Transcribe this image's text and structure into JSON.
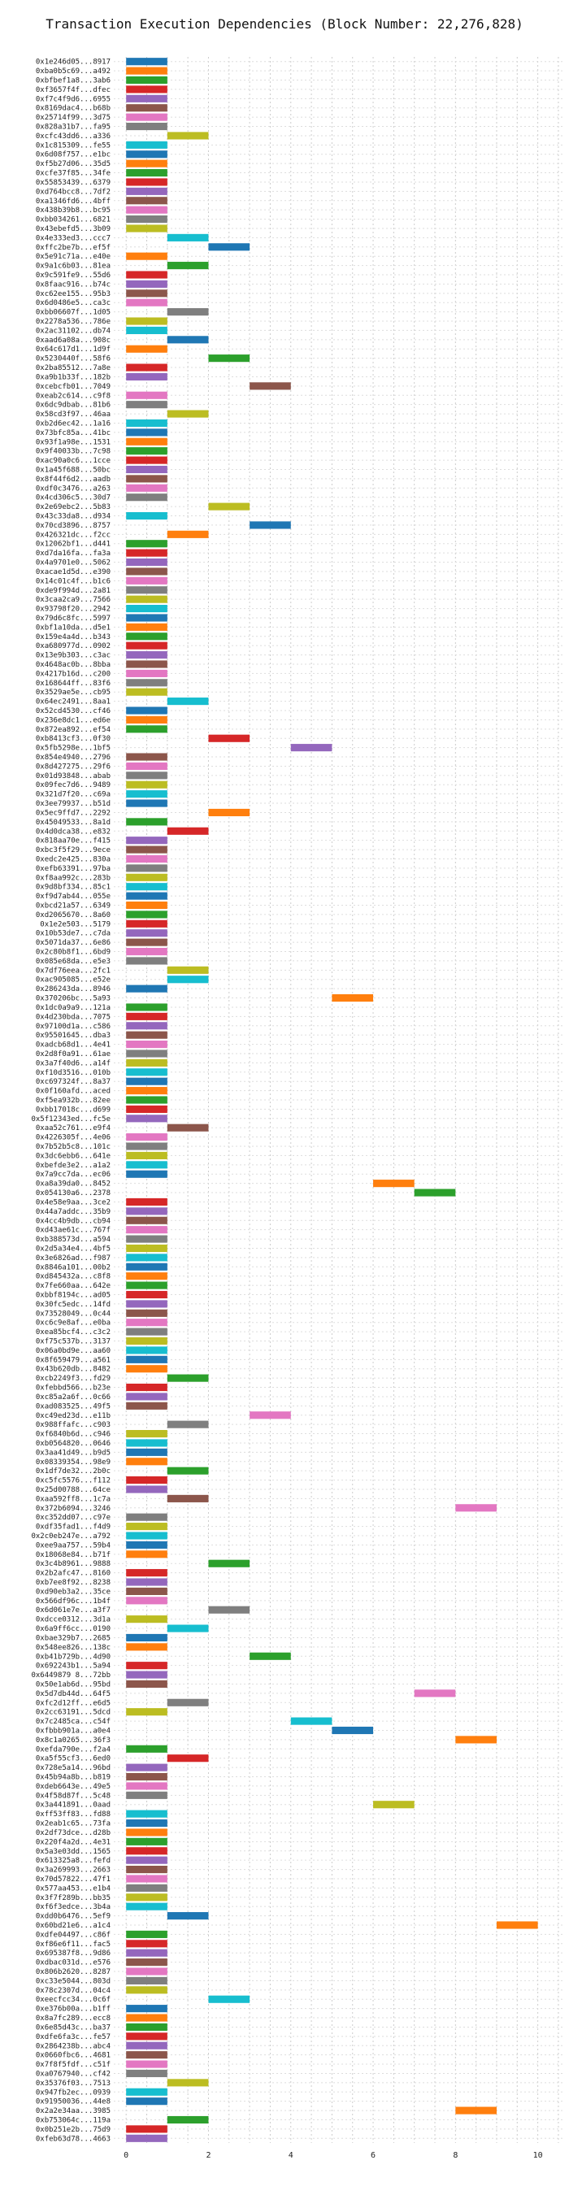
{
  "chart_data": {
    "type": "bar",
    "title": "Transaction Execution Dependencies (Block Number: 22,276,828)",
    "xlabel": "",
    "ylabel": "",
    "xlim": [
      -0.3,
      10.6
    ],
    "xticks": [
      0,
      2,
      4,
      6,
      8,
      10
    ],
    "grid": true,
    "palette": [
      "#1f77b4",
      "#ff7f0e",
      "#2ca02c",
      "#d62728",
      "#9467bd",
      "#8c564b",
      "#e377c2",
      "#7f7f7f",
      "#bcbd22",
      "#17becf"
    ],
    "transactions": [
      {
        "label": "0x1e246d05...8917",
        "start": 0
      },
      {
        "label": "0xba0b5c69...a492",
        "start": 0
      },
      {
        "label": "0xbfbef1a8...3ab6",
        "start": 0
      },
      {
        "label": "0xf3657f4f...dfec",
        "start": 0
      },
      {
        "label": "0xf7c4f9d6...6955",
        "start": 0
      },
      {
        "label": "0x8169dac4...b68b",
        "start": 0
      },
      {
        "label": "0x25714f99...3d75",
        "start": 0
      },
      {
        "label": "0x828a31b7...fa95",
        "start": 0
      },
      {
        "label": "0xcfc43dd6...a336",
        "start": 1
      },
      {
        "label": "0x1c815309...fe55",
        "start": 0
      },
      {
        "label": "0x6d08f757...e1bc",
        "start": 0
      },
      {
        "label": "0xf5b27d06...35d5",
        "start": 0
      },
      {
        "label": "0xcfe37f85...34fe",
        "start": 0
      },
      {
        "label": "0x55853439...6379",
        "start": 0
      },
      {
        "label": "0xd764bcc8...7df2",
        "start": 0
      },
      {
        "label": "0xa1346fd6...4bff",
        "start": 0
      },
      {
        "label": "0x438b39b8...bc95",
        "start": 0
      },
      {
        "label": "0xbb034261...6821",
        "start": 0
      },
      {
        "label": "0x43ebefd5...3b09",
        "start": 0
      },
      {
        "label": "0x4e333ed3...ccc7",
        "start": 1
      },
      {
        "label": "0xffc2be7b...ef5f",
        "start": 2
      },
      {
        "label": "0x5e91c71a...e40e",
        "start": 0
      },
      {
        "label": "0x9a1c6b03...81ea",
        "start": 1
      },
      {
        "label": "0x9c591fe9...55d6",
        "start": 0
      },
      {
        "label": "0x8faac916...b74c",
        "start": 0
      },
      {
        "label": "0xc62ee155...95b3",
        "start": 0
      },
      {
        "label": "0x6d0486e5...ca3c",
        "start": 0
      },
      {
        "label": "0xbb06607f...1d05",
        "start": 1
      },
      {
        "label": "0x2278a536...786e",
        "start": 0
      },
      {
        "label": "0x2ac31102...db74",
        "start": 0
      },
      {
        "label": "0xaad6a08a...908c",
        "start": 1
      },
      {
        "label": "0x64c617d1...1d9f",
        "start": 0
      },
      {
        "label": "0x5230440f...58f6",
        "start": 2
      },
      {
        "label": "0x2ba85512...7a8e",
        "start": 0
      },
      {
        "label": "0xa9b1b33f...182b",
        "start": 0
      },
      {
        "label": "0xcebcfb01...7049",
        "start": 3
      },
      {
        "label": "0xeab2c614...c9f8",
        "start": 0
      },
      {
        "label": "0x6dc9dbab...81b6",
        "start": 0
      },
      {
        "label": "0x58cd3f97...46aa",
        "start": 1
      },
      {
        "label": "0xb2d6ec42...1a16",
        "start": 0
      },
      {
        "label": "0x73bfc85a...41bc",
        "start": 0
      },
      {
        "label": "0x93f1a98e...1531",
        "start": 0
      },
      {
        "label": "0x9f40033b...7c98",
        "start": 0
      },
      {
        "label": "0xac90a0c6...1cce",
        "start": 0
      },
      {
        "label": "0x1a45f688...50bc",
        "start": 0
      },
      {
        "label": "0x8f44f6d2...aadb",
        "start": 0
      },
      {
        "label": "0xdf0c3476...a263",
        "start": 0
      },
      {
        "label": "0x4cd306c5...30d7",
        "start": 0
      },
      {
        "label": "0x2e69ebc2...5b83",
        "start": 2
      },
      {
        "label": "0x43c33da8...d934",
        "start": 0
      },
      {
        "label": "0x70cd3896...8757",
        "start": 3
      },
      {
        "label": "0x426321dc...f2cc",
        "start": 1
      },
      {
        "label": "0x12062bf1...d441",
        "start": 0
      },
      {
        "label": "0xd7da16fa...fa3a",
        "start": 0
      },
      {
        "label": "0x4a9701e0...5062",
        "start": 0
      },
      {
        "label": "0xacae1d5d...e390",
        "start": 0
      },
      {
        "label": "0x14c01c4f...b1c6",
        "start": 0
      },
      {
        "label": "0xde9f994d...2a81",
        "start": 0
      },
      {
        "label": "0x3caa2ca9...7566",
        "start": 0
      },
      {
        "label": "0x93798f20...2942",
        "start": 0
      },
      {
        "label": "0x79d6c8fc...5997",
        "start": 0
      },
      {
        "label": "0xbf1a10da...d5e1",
        "start": 0
      },
      {
        "label": "0x159e4a4d...b343",
        "start": 0
      },
      {
        "label": "0xa680977d...0902",
        "start": 0
      },
      {
        "label": "0x13e9b303...c3ac",
        "start": 0
      },
      {
        "label": "0x4648ac0b...8bba",
        "start": 0
      },
      {
        "label": "0x4217b16d...c200",
        "start": 0
      },
      {
        "label": "0x168644ff...83f6",
        "start": 0
      },
      {
        "label": "0x3529ae5e...cb95",
        "start": 0
      },
      {
        "label": "0x64ec2491...8aa1",
        "start": 1
      },
      {
        "label": "0x52cd4530...cf46",
        "start": 0
      },
      {
        "label": "0x236e8dc1...ed6e",
        "start": 0
      },
      {
        "label": "0x872ea892...ef54",
        "start": 0
      },
      {
        "label": "0xb8413cf3...0f30",
        "start": 2
      },
      {
        "label": "0x5fb5298e...1bf5",
        "start": 4
      },
      {
        "label": "0x854e4940...2796",
        "start": 0
      },
      {
        "label": "0x8d427275...29f6",
        "start": 0
      },
      {
        "label": "0x01d93848...abab",
        "start": 0
      },
      {
        "label": "0x09fec7d6...9489",
        "start": 0
      },
      {
        "label": "0x321d7f20...c69a",
        "start": 0
      },
      {
        "label": "0x3ee79937...b51d",
        "start": 0
      },
      {
        "label": "0x5ec9ffd7...2292",
        "start": 2
      },
      {
        "label": "0x45049533...8a1d",
        "start": 0
      },
      {
        "label": "0x4d0dca38...e832",
        "start": 1
      },
      {
        "label": "0x818aa70e...f415",
        "start": 0
      },
      {
        "label": "0xbc3f5f29...9ece",
        "start": 0
      },
      {
        "label": "0xedc2e425...830a",
        "start": 0
      },
      {
        "label": "0xefb63391...97ba",
        "start": 0
      },
      {
        "label": "0xf8aa992c...283b",
        "start": 0
      },
      {
        "label": "0x9d8bf334...85c1",
        "start": 0
      },
      {
        "label": "0xf9d7ab44...055e",
        "start": 0
      },
      {
        "label": "0xbcd21a57...6349",
        "start": 0
      },
      {
        "label": "0xd2065670...8a60",
        "start": 0
      },
      {
        "label": "0x1e2e503...5179",
        "start": 0
      },
      {
        "label": "0x10b53de7...c7da",
        "start": 0
      },
      {
        "label": "0x5071da37...6e86",
        "start": 0
      },
      {
        "label": "0x2c80b8f1...6bd9",
        "start": 0
      },
      {
        "label": "0x085e68da...e5e3",
        "start": 0
      },
      {
        "label": "0x7df76eea...2fc1",
        "start": 1
      },
      {
        "label": "0xac905085...e52e",
        "start": 1
      },
      {
        "label": "0x286243da...8946",
        "start": 0
      },
      {
        "label": "0x370206bc...5a93",
        "start": 5
      },
      {
        "label": "0x1dc0a9a9...121a",
        "start": 0
      },
      {
        "label": "0x4d230bda...7075",
        "start": 0
      },
      {
        "label": "0x97100d1a...c586",
        "start": 0
      },
      {
        "label": "0x95501645...dba3",
        "start": 0
      },
      {
        "label": "0xadcb68d1...4e41",
        "start": 0
      },
      {
        "label": "0x2d8f0a91...61ae",
        "start": 0
      },
      {
        "label": "0x3a7f40d6...a14f",
        "start": 0
      },
      {
        "label": "0xf10d3516...010b",
        "start": 0
      },
      {
        "label": "0xc697324f...8a37",
        "start": 0
      },
      {
        "label": "0x0f160afd...aced",
        "start": 0
      },
      {
        "label": "0xf5ea932b...82ee",
        "start": 0
      },
      {
        "label": "0xbb17018c...d699",
        "start": 0
      },
      {
        "label": "0x5f12343ed...fc5e",
        "start": 0
      },
      {
        "label": "0xaa52c761...e9f4",
        "start": 1
      },
      {
        "label": "0x4226305f...4e06",
        "start": 0
      },
      {
        "label": "0x7b52b5c8...101c",
        "start": 0
      },
      {
        "label": "0x3dc6ebb6...641e",
        "start": 0
      },
      {
        "label": "0xbefde3e2...a1a2",
        "start": 0
      },
      {
        "label": "0x7a9cc7da...ec06",
        "start": 0
      },
      {
        "label": "0xa8a39da0...8452",
        "start": 6
      },
      {
        "label": "0x054130a6...2378",
        "start": 7
      },
      {
        "label": "0x4e58e9aa...3ce2",
        "start": 0
      },
      {
        "label": "0x44a7addc...35b9",
        "start": 0
      },
      {
        "label": "0x4cc4b9db...cb94",
        "start": 0
      },
      {
        "label": "0xd43ae61c...767f",
        "start": 0
      },
      {
        "label": "0xb388573d...a594",
        "start": 0
      },
      {
        "label": "0x2d5a34e4...4bf5",
        "start": 0
      },
      {
        "label": "0x3e6826ad...f987",
        "start": 0
      },
      {
        "label": "0x8846a101...00b2",
        "start": 0
      },
      {
        "label": "0xd845432a...c8f8",
        "start": 0
      },
      {
        "label": "0x7fe660aa...642e",
        "start": 0
      },
      {
        "label": "0xbbf8194c...ad05",
        "start": 0
      },
      {
        "label": "0x30fc5edc...14fd",
        "start": 0
      },
      {
        "label": "0x73528049...0c44",
        "start": 0
      },
      {
        "label": "0xc6c9e8af...e0ba",
        "start": 0
      },
      {
        "label": "0xea85bcf4...c3c2",
        "start": 0
      },
      {
        "label": "0xf75c537b...3137",
        "start": 0
      },
      {
        "label": "0x06a0bd9e...aa60",
        "start": 0
      },
      {
        "label": "0x8f659479...a561",
        "start": 0
      },
      {
        "label": "0x43b620db...8482",
        "start": 0
      },
      {
        "label": "0xcb2249f3...fd29",
        "start": 1
      },
      {
        "label": "0xfebbd566...b23e",
        "start": 0
      },
      {
        "label": "0xc85a2a6f...0c66",
        "start": 0
      },
      {
        "label": "0xad083525...49f5",
        "start": 0
      },
      {
        "label": "0xc49ed23d...e11b",
        "start": 3
      },
      {
        "label": "0x988ffafc...c903",
        "start": 1
      },
      {
        "label": "0xf6840b6d...c946",
        "start": 0
      },
      {
        "label": "0xb0564820...0646",
        "start": 0
      },
      {
        "label": "0x3aa41d49...b9d5",
        "start": 0
      },
      {
        "label": "0x08339354...98e9",
        "start": 0
      },
      {
        "label": "0x1df7de32...2b0c",
        "start": 1
      },
      {
        "label": "0xc5fc5576...f112",
        "start": 0
      },
      {
        "label": "0x25d00788...64ce",
        "start": 0
      },
      {
        "label": "0xaa592ff8...1c7a",
        "start": 1
      },
      {
        "label": "0x372b6094...3246",
        "start": 8
      },
      {
        "label": "0xc352dd07...c97e",
        "start": 0
      },
      {
        "label": "0xdf35fad1...f4d9",
        "start": 0
      },
      {
        "label": "0x2c0eb247e...a792",
        "start": 0
      },
      {
        "label": "0xee9aa757...59b4",
        "start": 0
      },
      {
        "label": "0x18068e84...b71f",
        "start": 0
      },
      {
        "label": "0x3c4b8961...9888",
        "start": 2
      },
      {
        "label": "0x2b2afc47...8160",
        "start": 0
      },
      {
        "label": "0xb7ee8f92...8238",
        "start": 0
      },
      {
        "label": "0xd90eb3a2...35ce",
        "start": 0
      },
      {
        "label": "0x566df96c...1b4f",
        "start": 0
      },
      {
        "label": "0x6d061e7e...a3f7",
        "start": 2
      },
      {
        "label": "0xdcce0312...3d1a",
        "start": 0
      },
      {
        "label": "0x6a9ff6cc...0190",
        "start": 1
      },
      {
        "label": "0xbae329b7...2685",
        "start": 0
      },
      {
        "label": "0x548ee826...138c",
        "start": 0
      },
      {
        "label": "0xb41b729b...4d90",
        "start": 3
      },
      {
        "label": "0x692243b1...5a94",
        "start": 0
      },
      {
        "label": "0x6449879 8...72bb",
        "start": 0
      },
      {
        "label": "0x50e1ab6d...95bd",
        "start": 0
      },
      {
        "label": "0x5d7db44d...64f5",
        "start": 7
      },
      {
        "label": "0xfc2d12ff...e6d5",
        "start": 1
      },
      {
        "label": "0x2cc63191...5dcd",
        "start": 0
      },
      {
        "label": "0x7c2485ca...c54f",
        "start": 4
      },
      {
        "label": "0xfbbb901a...a0e4",
        "start": 5
      },
      {
        "label": "0x8c1a0265...36f3",
        "start": 8
      },
      {
        "label": "0xefda790e...f2a4",
        "start": 0
      },
      {
        "label": "0xa5f55cf3...6ed0",
        "start": 1
      },
      {
        "label": "0x728e5a14...96bd",
        "start": 0
      },
      {
        "label": "0x45b94a8b...b819",
        "start": 0
      },
      {
        "label": "0xdeb6643e...49e5",
        "start": 0
      },
      {
        "label": "0x4f58d87f...5c48",
        "start": 0
      },
      {
        "label": "0x3a441891...0aad",
        "start": 6
      },
      {
        "label": "0xff53ff83...fd88",
        "start": 0
      },
      {
        "label": "0x2eab1c65...73fa",
        "start": 0
      },
      {
        "label": "0x2df73dce...d28b",
        "start": 0
      },
      {
        "label": "0x220f4a2d...4e31",
        "start": 0
      },
      {
        "label": "0x5a3e03dd...1565",
        "start": 0
      },
      {
        "label": "0x613325a8...fefd",
        "start": 0
      },
      {
        "label": "0x3a269993...2663",
        "start": 0
      },
      {
        "label": "0x70d57822...47f1",
        "start": 0
      },
      {
        "label": "0x577aa453...e1b4",
        "start": 0
      },
      {
        "label": "0x3f7f289b...bb35",
        "start": 0
      },
      {
        "label": "0xf6f3edce...3b4a",
        "start": 0
      },
      {
        "label": "0xdd0b6476...5ef9",
        "start": 1
      },
      {
        "label": "0x60bd21e6...a1c4",
        "start": 9
      },
      {
        "label": "0xdfe04497...c86f",
        "start": 0
      },
      {
        "label": "0xf86e6f11...fac5",
        "start": 0
      },
      {
        "label": "0x695387f8...9d86",
        "start": 0
      },
      {
        "label": "0xdbac031d...e576",
        "start": 0
      },
      {
        "label": "0x806b2620...8287",
        "start": 0
      },
      {
        "label": "0xc33e5044...803d",
        "start": 0
      },
      {
        "label": "0x78c2307d...04c4",
        "start": 0
      },
      {
        "label": "0xeecfcc34...0c6f",
        "start": 2
      },
      {
        "label": "0xe376b00a...b1ff",
        "start": 0
      },
      {
        "label": "0x8a7fc289...ecc8",
        "start": 0
      },
      {
        "label": "0x6e85d43c...ba37",
        "start": 0
      },
      {
        "label": "0xdfe6fa3c...fe57",
        "start": 0
      },
      {
        "label": "0x2864238b...abc4",
        "start": 0
      },
      {
        "label": "0x0660fbc6...4681",
        "start": 0
      },
      {
        "label": "0x7f8f5fdf...c51f",
        "start": 0
      },
      {
        "label": "0xa0767940...cf42",
        "start": 0
      },
      {
        "label": "0x35376f03...7513",
        "start": 1
      },
      {
        "label": "0x947fb2ec...0939",
        "start": 0
      },
      {
        "label": "0x91950036...44e8",
        "start": 0
      },
      {
        "label": "0x2a2e34aa...3985",
        "start": 8
      },
      {
        "label": "0xb753064c...119a",
        "start": 1
      },
      {
        "label": "0x0b251e2b...75d9",
        "start": 0
      },
      {
        "label": "0xfeb63d78...4663",
        "start": 0
      }
    ]
  }
}
